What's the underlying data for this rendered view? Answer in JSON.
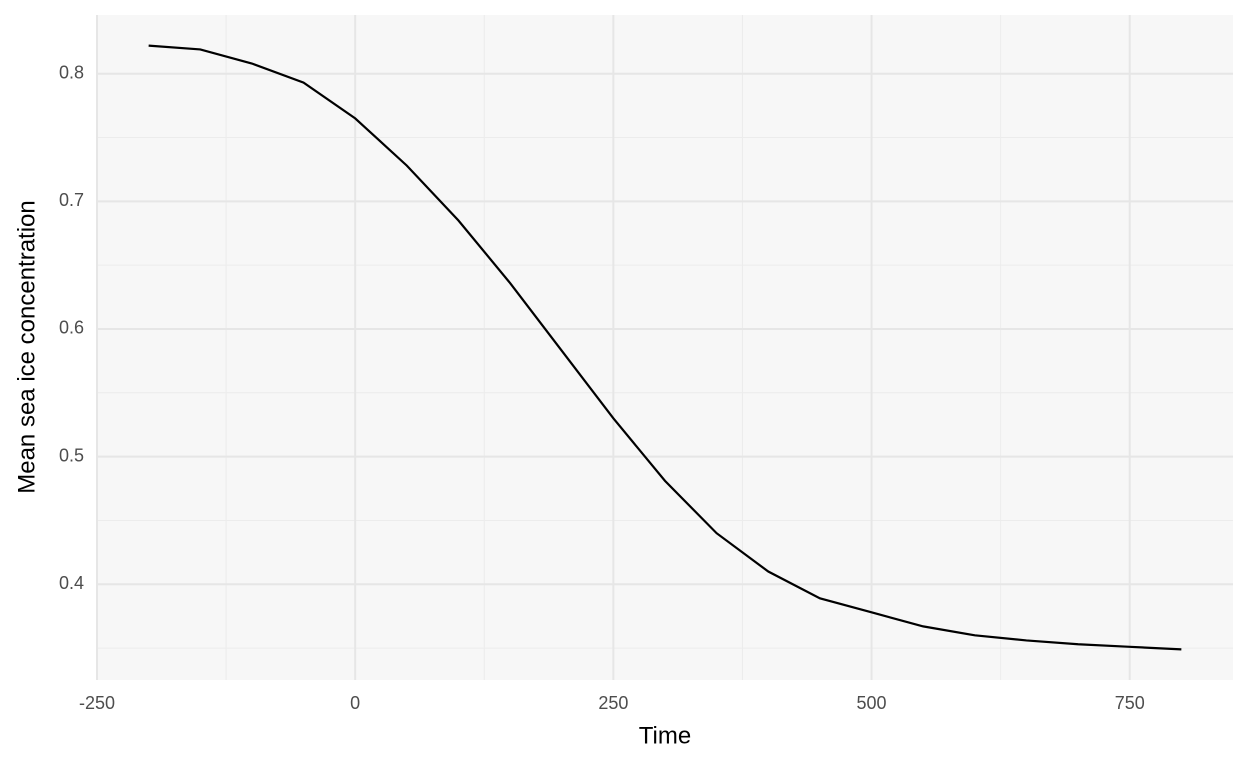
{
  "chart_data": {
    "type": "line",
    "x_label": "Time",
    "y_label": "Mean sea ice concentration",
    "x": [
      -200,
      -150,
      -100,
      -50,
      0,
      50,
      100,
      150,
      200,
      250,
      300,
      350,
      400,
      450,
      500,
      550,
      600,
      650,
      700,
      750,
      800
    ],
    "series": [
      {
        "name": "Mean sea ice concentration",
        "color": "#000000",
        "values": [
          0.822,
          0.819,
          0.808,
          0.793,
          0.765,
          0.728,
          0.685,
          0.636,
          0.583,
          0.53,
          0.481,
          0.44,
          0.41,
          0.389,
          0.378,
          0.367,
          0.36,
          0.356,
          0.353,
          0.351,
          0.349
        ]
      }
    ],
    "xlim": [
      -250,
      850
    ],
    "ylim": [
      0.325,
      0.846
    ],
    "xticks": [
      -250,
      0,
      250,
      500,
      750
    ],
    "yticks": [
      0.4,
      0.5,
      0.6,
      0.7,
      0.8
    ],
    "xminor": [
      -125,
      125,
      375,
      625
    ],
    "yminor": [
      0.35,
      0.45,
      0.55,
      0.65,
      0.75
    ],
    "grid": true
  }
}
